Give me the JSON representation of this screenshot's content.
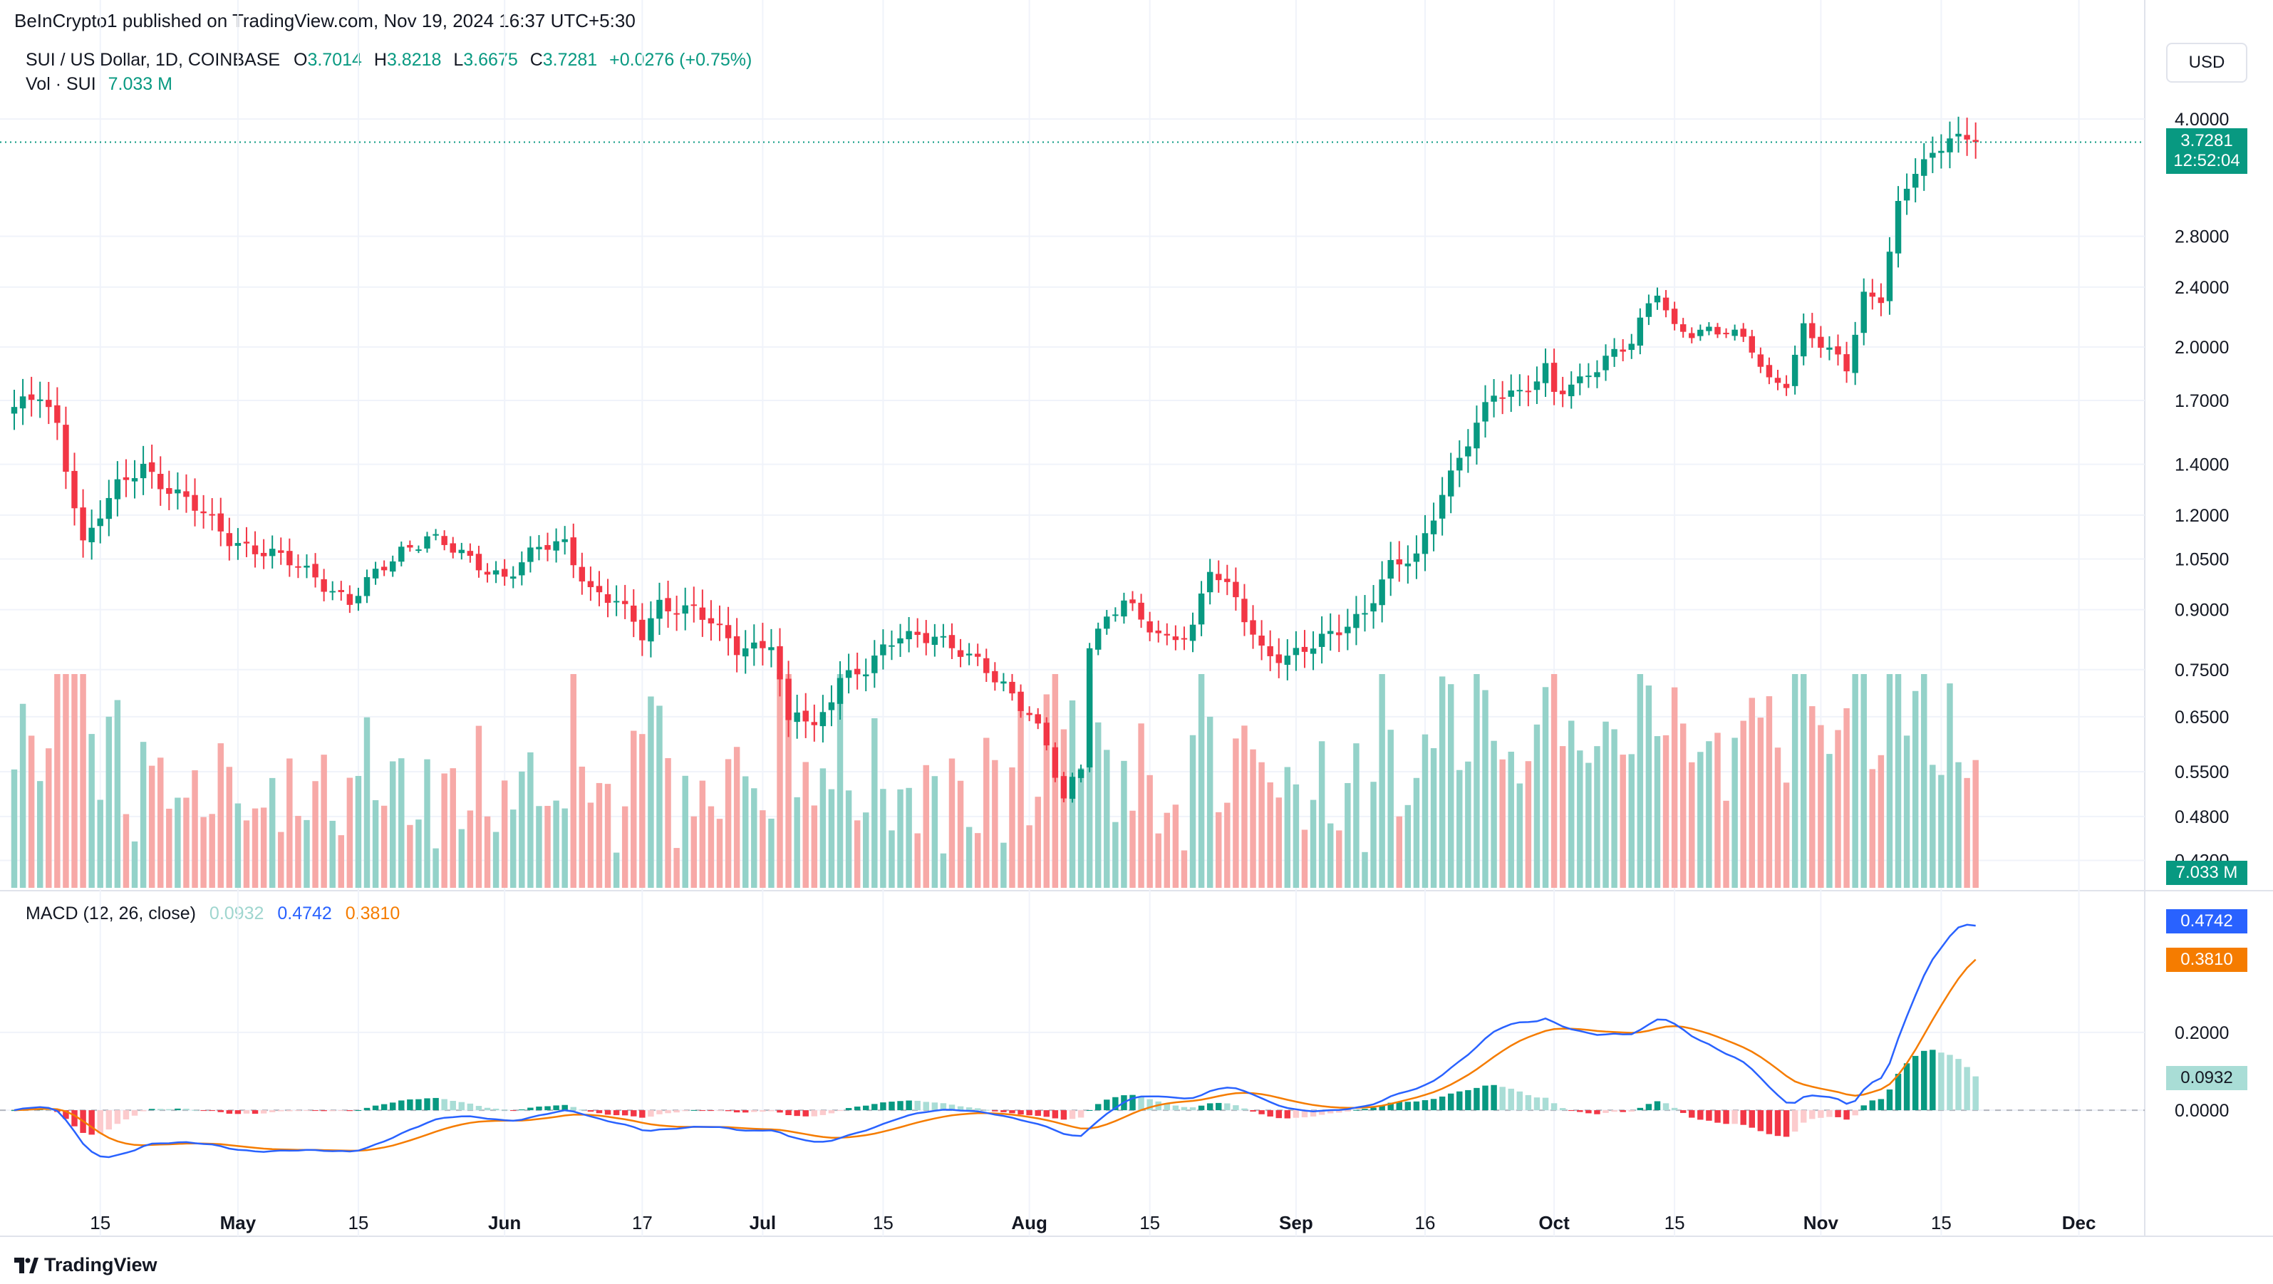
{
  "header": {
    "published": "BeInCrypto1 published on TradingView.com, Nov 19, 2024 16:37 UTC+5:30"
  },
  "legend": {
    "symbol": "SUI / US Dollar, 1D, COINBASE",
    "o_label": "O",
    "o_value": "3.7014",
    "h_label": "H",
    "h_value": "3.8218",
    "l_label": "L",
    "l_value": "3.6675",
    "c_label": "C",
    "c_value": "3.7281",
    "change": "+0.0276 (+0.75%)",
    "vol_label": "Vol · SUI",
    "vol_value": "7.033 M",
    "macd_label": "MACD (12, 26, close)",
    "macd_hist_value": "0.0932",
    "macd_line_value": "0.4742",
    "macd_signal_value": "0.3810"
  },
  "currency_button": "USD",
  "tags": {
    "price": "3.7281",
    "countdown": "12:52:04",
    "volume": "7.033 M",
    "macd_line": "0.4742",
    "macd_signal": "0.3810",
    "macd_hist": "0.0932"
  },
  "footer": {
    "brand": "TradingView"
  },
  "colors": {
    "up": "#089981",
    "down": "#f23645",
    "vol_up": "#94d2c9",
    "vol_down": "#f7a9a7",
    "macd_line": "#2962ff",
    "signal_line": "#f57c00",
    "hist_up_strong": "#089981",
    "hist_up_weak": "#a9ddd6",
    "hist_down_strong": "#f23645",
    "hist_down_weak": "#fccbcd",
    "grid": "#f0f3fa"
  },
  "chart_data": [
    {
      "type": "candlestick",
      "title": "SUI / US Dollar, 1D, COINBASE",
      "scale": "log",
      "y_ticks": [
        "4.0000",
        "2.8000",
        "2.4000",
        "2.0000",
        "1.7000",
        "1.4000",
        "1.2000",
        "1.0500",
        "0.9000",
        "0.7500",
        "0.6500",
        "0.5500",
        "0.4800",
        "0.4200"
      ],
      "x_ticks": [
        {
          "label": "15",
          "date": "2024-04-15"
        },
        {
          "label": "May",
          "date": "2024-05-01"
        },
        {
          "label": "15",
          "date": "2024-05-15"
        },
        {
          "label": "Jun",
          "date": "2024-06-01"
        },
        {
          "label": "17",
          "date": "2024-06-17"
        },
        {
          "label": "Jul",
          "date": "2024-07-01"
        },
        {
          "label": "15",
          "date": "2024-07-15"
        },
        {
          "label": "Aug",
          "date": "2024-08-01"
        },
        {
          "label": "15",
          "date": "2024-08-15"
        },
        {
          "label": "Sep",
          "date": "2024-09-01"
        },
        {
          "label": "16",
          "date": "2024-09-16"
        },
        {
          "label": "Oct",
          "date": "2024-10-01"
        },
        {
          "label": "15",
          "date": "2024-10-15"
        },
        {
          "label": "Nov",
          "date": "2024-11-01"
        },
        {
          "label": "15",
          "date": "2024-11-15"
        },
        {
          "label": "Dec",
          "date": "2024-12-01"
        }
      ],
      "x_range": [
        "2024-04-05",
        "2024-12-07"
      ],
      "y_range": [
        0.4,
        4.15
      ],
      "last_close": 3.7281,
      "close_anchors": [
        [
          "2024-04-05",
          1.65
        ],
        [
          "2024-04-08",
          1.72
        ],
        [
          "2024-04-10",
          1.58
        ],
        [
          "2024-04-12",
          1.25
        ],
        [
          "2024-04-13",
          1.1
        ],
        [
          "2024-04-15",
          1.2
        ],
        [
          "2024-04-17",
          1.3
        ],
        [
          "2024-04-20",
          1.4
        ],
        [
          "2024-04-22",
          1.33
        ],
        [
          "2024-04-25",
          1.25
        ],
        [
          "2024-04-30",
          1.12
        ],
        [
          "2024-05-05",
          1.06
        ],
        [
          "2024-05-10",
          1.0
        ],
        [
          "2024-05-14",
          0.92
        ],
        [
          "2024-05-20",
          1.08
        ],
        [
          "2024-05-23",
          1.13
        ],
        [
          "2024-05-28",
          1.04
        ],
        [
          "2024-06-01",
          1.0
        ],
        [
          "2024-06-05",
          1.08
        ],
        [
          "2024-06-08",
          1.1
        ],
        [
          "2024-06-11",
          0.96
        ],
        [
          "2024-06-14",
          0.92
        ],
        [
          "2024-06-17",
          0.83
        ],
        [
          "2024-06-19",
          0.92
        ],
        [
          "2024-06-23",
          0.9
        ],
        [
          "2024-06-28",
          0.8
        ],
        [
          "2024-07-02",
          0.82
        ],
        [
          "2024-07-04",
          0.63
        ],
        [
          "2024-07-05",
          0.66
        ],
        [
          "2024-07-07",
          0.62
        ],
        [
          "2024-07-10",
          0.74
        ],
        [
          "2024-07-13",
          0.75
        ],
        [
          "2024-07-17",
          0.83
        ],
        [
          "2024-07-21",
          0.84
        ],
        [
          "2024-07-23",
          0.8
        ],
        [
          "2024-07-26",
          0.76
        ],
        [
          "2024-07-29",
          0.72
        ],
        [
          "2024-08-01",
          0.66
        ],
        [
          "2024-08-03",
          0.59
        ],
        [
          "2024-08-05",
          0.5
        ],
        [
          "2024-08-06",
          0.53
        ],
        [
          "2024-08-07",
          0.56
        ],
        [
          "2024-08-08",
          0.82
        ],
        [
          "2024-08-10",
          0.88
        ],
        [
          "2024-08-12",
          0.93
        ],
        [
          "2024-08-14",
          0.86
        ],
        [
          "2024-08-17",
          0.82
        ],
        [
          "2024-08-20",
          0.86
        ],
        [
          "2024-08-22",
          1.02
        ],
        [
          "2024-08-25",
          0.92
        ],
        [
          "2024-08-28",
          0.8
        ],
        [
          "2024-08-31",
          0.78
        ],
        [
          "2024-09-03",
          0.8
        ],
        [
          "2024-09-06",
          0.85
        ],
        [
          "2024-09-09",
          0.9
        ],
        [
          "2024-09-12",
          1.02
        ],
        [
          "2024-09-15",
          1.05
        ],
        [
          "2024-09-18",
          1.3
        ],
        [
          "2024-09-21",
          1.5
        ],
        [
          "2024-09-24",
          1.72
        ],
        [
          "2024-09-27",
          1.75
        ],
        [
          "2024-09-30",
          1.88
        ],
        [
          "2024-10-01",
          1.73
        ],
        [
          "2024-10-04",
          1.78
        ],
        [
          "2024-10-07",
          1.95
        ],
        [
          "2024-10-10",
          2.05
        ],
        [
          "2024-10-13",
          2.35
        ],
        [
          "2024-10-15",
          2.1
        ],
        [
          "2024-10-18",
          2.12
        ],
        [
          "2024-10-21",
          2.1
        ],
        [
          "2024-10-24",
          1.98
        ],
        [
          "2024-10-26",
          1.8
        ],
        [
          "2024-10-28",
          1.82
        ],
        [
          "2024-10-30",
          2.12
        ],
        [
          "2024-11-02",
          1.95
        ],
        [
          "2024-11-04",
          1.88
        ],
        [
          "2024-11-06",
          2.35
        ],
        [
          "2024-11-08",
          2.35
        ],
        [
          "2024-11-10",
          3.05
        ],
        [
          "2024-11-12",
          3.4
        ],
        [
          "2024-11-14",
          3.55
        ],
        [
          "2024-11-16",
          3.85
        ],
        [
          "2024-11-19",
          3.7281
        ]
      ]
    },
    {
      "type": "bar",
      "title": "Vol · SUI",
      "last_value": "7.033 M",
      "note": "daily volume bars, tallest around Oct 2 and Nov 9"
    },
    {
      "type": "line",
      "title": "MACD (12, 26, close)",
      "y_ticks": [
        "0.2000",
        "0.0000"
      ],
      "y_range": [
        -0.15,
        0.5
      ],
      "series": [
        {
          "name": "MACD",
          "color": "#2962ff",
          "last": 0.4742
        },
        {
          "name": "Signal",
          "color": "#f57c00",
          "last": 0.381
        },
        {
          "name": "Histogram",
          "last": 0.0932
        }
      ]
    }
  ]
}
